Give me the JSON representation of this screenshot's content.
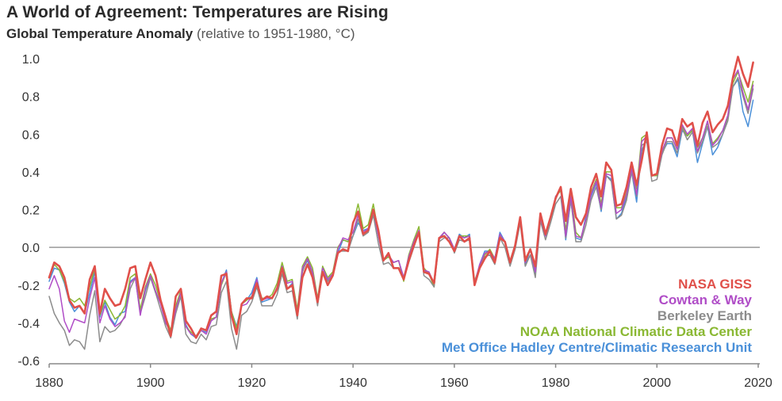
{
  "title": "A World of Agreement: Temperatures are Rising",
  "subtitle_main": "Global Temperature Anomaly",
  "subtitle_note": "(relative to 1951-1980, °C)",
  "chart_data": {
    "type": "line",
    "title": "A World of Agreement: Temperatures are Rising",
    "subtitle": "Global Temperature Anomaly (relative to 1951-1980, °C)",
    "xlabel": "",
    "ylabel": "",
    "xlim": [
      1880,
      2019
    ],
    "ylim": [
      -0.6,
      1.0
    ],
    "x_ticks": [
      1880,
      1900,
      1920,
      1940,
      1960,
      1980,
      2000,
      2020
    ],
    "y_ticks": [
      -0.6,
      -0.4,
      -0.2,
      0.0,
      0.2,
      0.4,
      0.6,
      0.8,
      1.0
    ],
    "y_tick_labels": [
      "-0.6",
      "-0.4",
      "-0.2",
      "0.0",
      "0.2",
      "0.4",
      "0.6",
      "0.8",
      "1.0"
    ],
    "x_tick_labels": [
      "1880",
      "1900",
      "1920",
      "1940",
      "1960",
      "1980",
      "2000",
      "2020"
    ],
    "grid": "none",
    "zero_line": true,
    "legend_position": "bottom-right",
    "x_start": 1880,
    "series": [
      {
        "name": "Met Office Hadley Centre/Climatic Research Unit",
        "color": "#4a90d9",
        "values": [
          -0.18,
          -0.11,
          -0.12,
          -0.19,
          -0.29,
          -0.34,
          -0.31,
          -0.35,
          -0.24,
          -0.13,
          -0.37,
          -0.29,
          -0.37,
          -0.41,
          -0.35,
          -0.34,
          -0.18,
          -0.16,
          -0.34,
          -0.23,
          -0.15,
          -0.24,
          -0.29,
          -0.4,
          -0.45,
          -0.32,
          -0.23,
          -0.41,
          -0.46,
          -0.48,
          -0.44,
          -0.45,
          -0.38,
          -0.37,
          -0.19,
          -0.12,
          -0.34,
          -0.42,
          -0.3,
          -0.28,
          -0.24,
          -0.16,
          -0.29,
          -0.28,
          -0.27,
          -0.22,
          -0.11,
          -0.22,
          -0.19,
          -0.36,
          -0.12,
          -0.07,
          -0.15,
          -0.29,
          -0.13,
          -0.18,
          -0.15,
          -0.03,
          0.04,
          0.03,
          0.06,
          0.13,
          0.09,
          0.1,
          0.19,
          0.06,
          -0.07,
          -0.04,
          -0.08,
          -0.07,
          -0.16,
          -0.06,
          0.02,
          0.08,
          -0.12,
          -0.14,
          -0.19,
          0.04,
          0.08,
          0.05,
          -0.01,
          0.07,
          0.05,
          0.07,
          -0.2,
          -0.09,
          -0.02,
          -0.02,
          -0.06,
          0.08,
          0.03,
          -0.09,
          0.01,
          0.16,
          -0.1,
          -0.01,
          -0.14,
          0.16,
          0.06,
          0.16,
          0.26,
          0.31,
          0.04,
          0.25,
          0.05,
          0.04,
          0.17,
          0.27,
          0.34,
          0.19,
          0.38,
          0.36,
          0.15,
          0.18,
          0.27,
          0.4,
          0.24,
          0.51,
          0.58,
          0.38,
          0.38,
          0.5,
          0.55,
          0.55,
          0.48,
          0.62,
          0.59,
          0.62,
          0.45,
          0.55,
          0.64,
          0.49,
          0.53,
          0.6,
          0.69,
          0.85,
          0.89,
          0.72,
          0.64,
          0.78
        ]
      },
      {
        "name": "NOAA National Climatic Data Center",
        "color": "#8ab833",
        "values": [
          -0.16,
          -0.09,
          -0.12,
          -0.18,
          -0.27,
          -0.29,
          -0.27,
          -0.31,
          -0.21,
          -0.11,
          -0.36,
          -0.28,
          -0.33,
          -0.38,
          -0.36,
          -0.31,
          -0.16,
          -0.14,
          -0.33,
          -0.21,
          -0.14,
          -0.2,
          -0.29,
          -0.37,
          -0.44,
          -0.31,
          -0.23,
          -0.42,
          -0.45,
          -0.47,
          -0.43,
          -0.44,
          -0.38,
          -0.37,
          -0.2,
          -0.13,
          -0.34,
          -0.43,
          -0.3,
          -0.28,
          -0.26,
          -0.18,
          -0.27,
          -0.27,
          -0.25,
          -0.19,
          -0.08,
          -0.18,
          -0.17,
          -0.33,
          -0.1,
          -0.05,
          -0.11,
          -0.27,
          -0.1,
          -0.16,
          -0.13,
          0.0,
          0.04,
          0.03,
          0.12,
          0.23,
          0.1,
          0.12,
          0.23,
          0.08,
          -0.07,
          -0.05,
          -0.08,
          -0.07,
          -0.18,
          -0.04,
          0.04,
          0.11,
          -0.11,
          -0.14,
          -0.21,
          0.05,
          0.08,
          0.05,
          -0.01,
          0.06,
          0.06,
          0.06,
          -0.18,
          -0.1,
          -0.04,
          -0.01,
          -0.06,
          0.06,
          0.03,
          -0.07,
          0.01,
          0.16,
          -0.06,
          -0.01,
          -0.11,
          0.18,
          0.07,
          0.16,
          0.27,
          0.3,
          0.09,
          0.29,
          0.08,
          0.05,
          0.15,
          0.29,
          0.36,
          0.23,
          0.4,
          0.4,
          0.21,
          0.21,
          0.29,
          0.43,
          0.31,
          0.58,
          0.6,
          0.38,
          0.38,
          0.5,
          0.58,
          0.58,
          0.52,
          0.64,
          0.59,
          0.62,
          0.53,
          0.58,
          0.66,
          0.55,
          0.58,
          0.62,
          0.69,
          0.87,
          0.93,
          0.85,
          0.77,
          0.88
        ]
      },
      {
        "name": "Berkeley Earth",
        "color": "#8c8c8c",
        "values": [
          -0.26,
          -0.35,
          -0.4,
          -0.44,
          -0.52,
          -0.49,
          -0.5,
          -0.54,
          -0.36,
          -0.23,
          -0.5,
          -0.42,
          -0.45,
          -0.44,
          -0.41,
          -0.36,
          -0.22,
          -0.16,
          -0.35,
          -0.26,
          -0.16,
          -0.24,
          -0.33,
          -0.42,
          -0.48,
          -0.35,
          -0.26,
          -0.46,
          -0.5,
          -0.51,
          -0.46,
          -0.49,
          -0.42,
          -0.41,
          -0.24,
          -0.18,
          -0.43,
          -0.54,
          -0.36,
          -0.34,
          -0.29,
          -0.21,
          -0.31,
          -0.31,
          -0.31,
          -0.25,
          -0.14,
          -0.24,
          -0.23,
          -0.38,
          -0.13,
          -0.06,
          -0.14,
          -0.31,
          -0.13,
          -0.18,
          -0.15,
          -0.02,
          -0.02,
          -0.02,
          0.06,
          0.15,
          0.06,
          0.08,
          0.17,
          0.02,
          -0.09,
          -0.08,
          -0.11,
          -0.11,
          -0.17,
          -0.08,
          0.0,
          0.08,
          -0.15,
          -0.17,
          -0.21,
          0.03,
          0.05,
          0.05,
          -0.03,
          0.04,
          0.03,
          0.04,
          -0.2,
          -0.1,
          -0.05,
          -0.04,
          -0.09,
          0.05,
          0.0,
          -0.1,
          -0.01,
          0.13,
          -0.1,
          -0.04,
          -0.16,
          0.14,
          0.04,
          0.13,
          0.23,
          0.27,
          0.05,
          0.25,
          0.03,
          0.03,
          0.12,
          0.25,
          0.32,
          0.2,
          0.38,
          0.35,
          0.15,
          0.17,
          0.25,
          0.4,
          0.27,
          0.54,
          0.56,
          0.35,
          0.36,
          0.49,
          0.56,
          0.56,
          0.5,
          0.63,
          0.57,
          0.61,
          0.5,
          0.56,
          0.64,
          0.53,
          0.55,
          0.6,
          0.67,
          0.85,
          0.9,
          0.8,
          0.71,
          0.84
        ]
      },
      {
        "name": "Cowtan & Way",
        "color": "#b04dc7",
        "values": [
          -0.22,
          -0.15,
          -0.22,
          -0.39,
          -0.45,
          -0.38,
          -0.39,
          -0.4,
          -0.27,
          -0.16,
          -0.4,
          -0.31,
          -0.38,
          -0.42,
          -0.4,
          -0.37,
          -0.19,
          -0.16,
          -0.36,
          -0.22,
          -0.15,
          -0.23,
          -0.3,
          -0.4,
          -0.45,
          -0.33,
          -0.24,
          -0.42,
          -0.46,
          -0.47,
          -0.44,
          -0.46,
          -0.39,
          -0.37,
          -0.19,
          -0.13,
          -0.37,
          -0.45,
          -0.31,
          -0.3,
          -0.26,
          -0.17,
          -0.28,
          -0.27,
          -0.27,
          -0.21,
          -0.1,
          -0.19,
          -0.18,
          -0.35,
          -0.11,
          -0.06,
          -0.13,
          -0.28,
          -0.11,
          -0.17,
          -0.14,
          -0.01,
          0.05,
          0.04,
          0.08,
          0.17,
          0.08,
          0.1,
          0.2,
          0.06,
          -0.07,
          -0.04,
          -0.08,
          -0.07,
          -0.16,
          -0.05,
          0.03,
          0.09,
          -0.12,
          -0.13,
          -0.19,
          0.05,
          0.08,
          0.05,
          -0.01,
          0.06,
          0.05,
          0.06,
          -0.19,
          -0.09,
          -0.03,
          -0.02,
          -0.06,
          0.07,
          0.03,
          -0.08,
          0.01,
          0.16,
          -0.08,
          -0.01,
          -0.13,
          0.16,
          0.06,
          0.16,
          0.27,
          0.31,
          0.06,
          0.27,
          0.06,
          0.05,
          0.15,
          0.28,
          0.35,
          0.21,
          0.39,
          0.38,
          0.18,
          0.2,
          0.28,
          0.42,
          0.28,
          0.56,
          0.59,
          0.38,
          0.39,
          0.51,
          0.58,
          0.58,
          0.52,
          0.65,
          0.6,
          0.63,
          0.51,
          0.58,
          0.67,
          0.54,
          0.57,
          0.62,
          0.7,
          0.89,
          0.94,
          0.82,
          0.73,
          0.86
        ]
      },
      {
        "name": "NASA GISS",
        "color": "#e0504a",
        "values": [
          -0.16,
          -0.08,
          -0.1,
          -0.16,
          -0.28,
          -0.32,
          -0.31,
          -0.35,
          -0.17,
          -0.1,
          -0.35,
          -0.22,
          -0.27,
          -0.31,
          -0.3,
          -0.22,
          -0.11,
          -0.1,
          -0.27,
          -0.17,
          -0.08,
          -0.15,
          -0.28,
          -0.37,
          -0.47,
          -0.26,
          -0.22,
          -0.39,
          -0.43,
          -0.48,
          -0.43,
          -0.44,
          -0.36,
          -0.34,
          -0.15,
          -0.14,
          -0.36,
          -0.46,
          -0.3,
          -0.27,
          -0.27,
          -0.19,
          -0.28,
          -0.26,
          -0.27,
          -0.22,
          -0.11,
          -0.22,
          -0.2,
          -0.36,
          -0.16,
          -0.09,
          -0.16,
          -0.29,
          -0.13,
          -0.2,
          -0.15,
          -0.03,
          -0.01,
          -0.02,
          0.13,
          0.19,
          0.07,
          0.09,
          0.2,
          0.09,
          -0.07,
          -0.03,
          -0.11,
          -0.11,
          -0.17,
          -0.07,
          0.01,
          0.08,
          -0.13,
          -0.14,
          -0.19,
          0.05,
          0.06,
          0.03,
          -0.02,
          0.06,
          0.03,
          0.05,
          -0.2,
          -0.11,
          -0.06,
          -0.02,
          -0.08,
          0.05,
          0.03,
          -0.08,
          0.01,
          0.16,
          -0.07,
          -0.01,
          -0.1,
          0.18,
          0.07,
          0.16,
          0.26,
          0.32,
          0.14,
          0.31,
          0.16,
          0.12,
          0.18,
          0.32,
          0.39,
          0.27,
          0.45,
          0.41,
          0.22,
          0.23,
          0.32,
          0.45,
          0.33,
          0.46,
          0.61,
          0.38,
          0.39,
          0.54,
          0.63,
          0.62,
          0.54,
          0.68,
          0.64,
          0.66,
          0.54,
          0.66,
          0.72,
          0.61,
          0.65,
          0.68,
          0.75,
          0.9,
          1.01,
          0.92,
          0.85,
          0.98
        ]
      }
    ],
    "legend_order": [
      "NASA GISS",
      "Cowtan & Way",
      "Berkeley Earth",
      "NOAA National Climatic Data Center",
      "Met Office Hadley Centre/Climatic Research Unit"
    ]
  }
}
